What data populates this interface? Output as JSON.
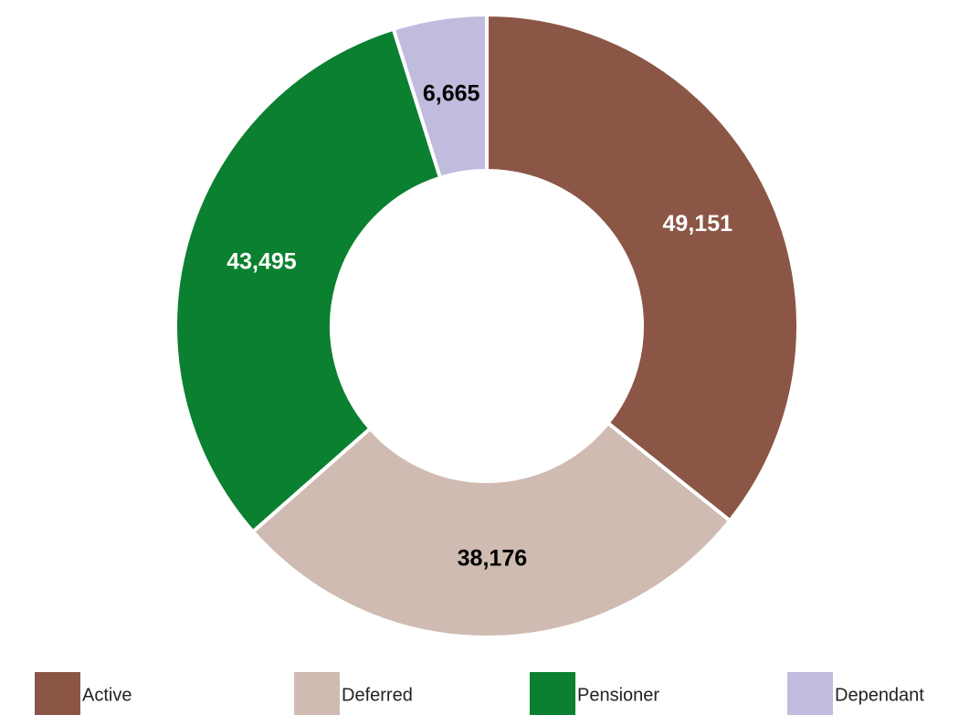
{
  "chart_data": {
    "type": "donut",
    "categories": [
      "Active",
      "Deferred",
      "Pensioner",
      "Dependant"
    ],
    "values": [
      49151,
      38176,
      43495,
      6665
    ],
    "value_labels": [
      "49,151",
      "38,176",
      "43,495",
      "6,665"
    ],
    "colors": [
      "#8b5646",
      "#cfbbb1",
      "#0b8030",
      "#c0bcdd"
    ],
    "legend": "bottom"
  }
}
